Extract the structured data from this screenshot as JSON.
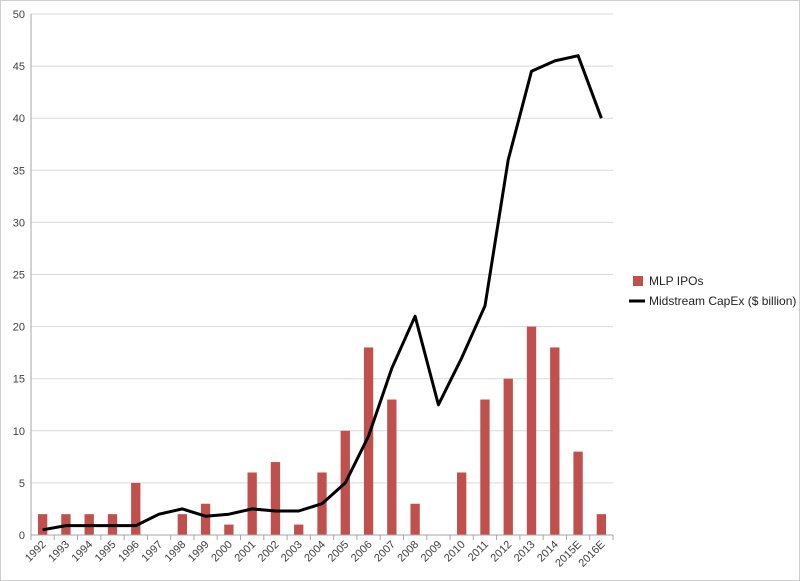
{
  "chart_data": {
    "type": "bar",
    "categories": [
      "1992",
      "1993",
      "1994",
      "1995",
      "1996",
      "1997",
      "1998",
      "1999",
      "2000",
      "2001",
      "2002",
      "2003",
      "2004",
      "2005",
      "2006",
      "2007",
      "2008",
      "2009",
      "2010",
      "2011",
      "2012",
      "2013",
      "2014",
      "2015E",
      "2016E"
    ],
    "series": [
      {
        "name": "MLP IPOs",
        "type": "bar",
        "color": "#c0504d",
        "values": [
          2,
          2,
          2,
          2,
          5,
          0,
          2,
          3,
          1,
          6,
          7,
          1,
          6,
          10,
          18,
          13,
          3,
          0,
          6,
          13,
          15,
          20,
          18,
          8,
          2
        ]
      },
      {
        "name": "Midstream CapEx ($ billion)",
        "type": "line",
        "color": "#000000",
        "values": [
          0.5,
          0.9,
          0.9,
          0.9,
          0.9,
          2.0,
          2.5,
          1.8,
          2.0,
          2.5,
          2.3,
          2.3,
          3.0,
          5.0,
          9.5,
          16.0,
          21.0,
          12.5,
          17.0,
          22.0,
          36.0,
          44.5,
          45.5,
          46.0,
          40.0
        ]
      }
    ],
    "ylim": [
      0,
      50
    ],
    "yticks": [
      0,
      5,
      10,
      15,
      20,
      25,
      30,
      35,
      40,
      45,
      50
    ],
    "grid": true,
    "legend_position": "right",
    "title": "",
    "xlabel": "",
    "ylabel": ""
  }
}
